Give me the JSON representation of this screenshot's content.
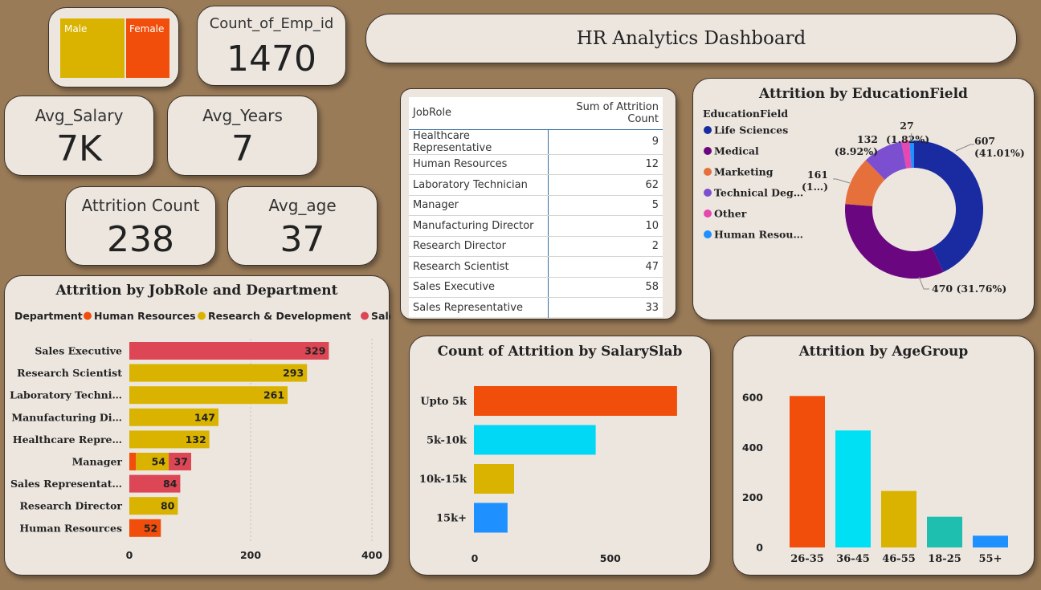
{
  "gender_card": {
    "male_label": "Male",
    "female_label": "Female",
    "male_color": "#d9b300",
    "female_color": "#f04e0a"
  },
  "kpis": {
    "count_emp": {
      "title": "Count_of_Emp_id",
      "value": "1470"
    },
    "avg_salary": {
      "title": "Avg_Salary",
      "value": "7K"
    },
    "avg_years": {
      "title": "Avg_Years",
      "value": "7"
    },
    "attrition_count": {
      "title": "Attrition Count",
      "value": "238"
    },
    "avg_age": {
      "title": "Avg_age",
      "value": "37"
    }
  },
  "dashboard_title": "HR Analytics Dashboard",
  "jobrole_table": {
    "col1": "JobRole",
    "col2": "Sum of Attrition Count",
    "rows": [
      {
        "role": "Healthcare Representative",
        "count": "9"
      },
      {
        "role": "Human Resources",
        "count": "12"
      },
      {
        "role": "Laboratory Technician",
        "count": "62"
      },
      {
        "role": "Manager",
        "count": "5"
      },
      {
        "role": "Manufacturing Director",
        "count": "10"
      },
      {
        "role": "Research Director",
        "count": "2"
      },
      {
        "role": "Research Scientist",
        "count": "47"
      },
      {
        "role": "Sales Executive",
        "count": "58"
      },
      {
        "role": "Sales Representative",
        "count": "33"
      }
    ]
  },
  "chart_data": [
    {
      "type": "pie",
      "title": "Attrition by EducationField",
      "legend_title": "EducationField",
      "categories": [
        "Life Sciences",
        "Medical",
        "Marketing",
        "Technical Deg…",
        "Other",
        "Human Resou…"
      ],
      "values": [
        607,
        470,
        161,
        132,
        27,
        15
      ],
      "labels": [
        "607 (41.01%)",
        "470 (31.76%)",
        "161 (1…)",
        "132 (8.92%)",
        "27 (1.82%)",
        ""
      ],
      "colors": [
        "#1a2aa0",
        "#6a067f",
        "#e6703c",
        "#7b4fcf",
        "#e647b0",
        "#1e90ff"
      ]
    },
    {
      "type": "bar",
      "title": "Attrition by JobRole and Department",
      "legend_title": "Department",
      "series_names": [
        "Human Resources",
        "Research & Development",
        "Sales"
      ],
      "series_colors": [
        "#f04e0a",
        "#d9b300",
        "#dc4655"
      ],
      "categories": [
        "Sales Executive",
        "Research Scientist",
        "Laboratory Techni…",
        "Manufacturing Di…",
        "Healthcare Repre…",
        "Manager",
        "Sales Representat…",
        "Research Director",
        "Human Resources"
      ],
      "segments": [
        [
          {
            "series": 2,
            "value": 329
          }
        ],
        [
          {
            "series": 1,
            "value": 293
          }
        ],
        [
          {
            "series": 1,
            "value": 261
          }
        ],
        [
          {
            "series": 1,
            "value": 147
          }
        ],
        [
          {
            "series": 1,
            "value": 132
          }
        ],
        [
          {
            "series": 0,
            "value": 11
          },
          {
            "series": 1,
            "value": 54
          },
          {
            "series": 2,
            "value": 37
          }
        ],
        [
          {
            "series": 2,
            "value": 84
          }
        ],
        [
          {
            "series": 1,
            "value": 80
          }
        ],
        [
          {
            "series": 0,
            "value": 52
          }
        ]
      ],
      "data_labels": [
        [
          "329"
        ],
        [
          "293"
        ],
        [
          "261"
        ],
        [
          "147"
        ],
        [
          "132"
        ],
        [
          "",
          "54",
          "37"
        ],
        [
          "84"
        ],
        [
          "80"
        ],
        [
          "52"
        ]
      ],
      "xlim": [
        0,
        400
      ],
      "xticks": [
        "0",
        "200",
        "400"
      ]
    },
    {
      "type": "bar",
      "title": "Count of Attrition by SalarySlab",
      "categories": [
        "Upto 5k",
        "5k-10k",
        "10k-15k",
        "15k+"
      ],
      "values": [
        749,
        449,
        148,
        124
      ],
      "colors": [
        "#f04e0a",
        "#00d8f5",
        "#d9b300",
        "#1e90ff"
      ],
      "xlim": [
        0,
        850
      ],
      "xticks": [
        "0",
        "500"
      ]
    },
    {
      "type": "bar",
      "title": "Attrition by AgeGroup",
      "categories": [
        "26-35",
        "36-45",
        "46-55",
        "18-25",
        "55+"
      ],
      "values": [
        606,
        468,
        226,
        123,
        47
      ],
      "colors": [
        "#f04e0a",
        "#00e0f5",
        "#d9b300",
        "#1fbfb0",
        "#1e90ff"
      ],
      "ylim": [
        0,
        650
      ],
      "yticks": [
        "0",
        "200",
        "400",
        "600"
      ]
    }
  ]
}
